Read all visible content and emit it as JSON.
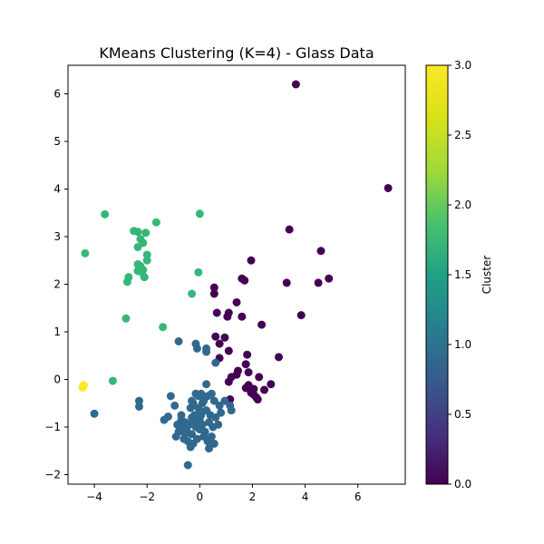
{
  "chart_data": {
    "type": "scatter",
    "title": "KMeans Clustering (K=4) - Glass Data",
    "xlabel": "",
    "ylabel": "",
    "xlim": [
      -5.0,
      7.8
    ],
    "ylim": [
      -2.2,
      6.6
    ],
    "x_ticks": [
      -4,
      -2,
      0,
      2,
      4,
      6
    ],
    "y_ticks": [
      -2,
      -1,
      0,
      1,
      2,
      3,
      4,
      5,
      6
    ],
    "x_tick_labels": [
      "−4",
      "−2",
      "0",
      "2",
      "4",
      "6"
    ],
    "y_tick_labels": [
      "−2",
      "−1",
      "0",
      "1",
      "2",
      "3",
      "4",
      "5",
      "6"
    ],
    "grid": false,
    "colormap": "viridis",
    "colorbar": {
      "label": "Cluster",
      "range": [
        0.0,
        3.0
      ],
      "ticks": [
        0.0,
        0.5,
        1.0,
        1.5,
        2.0,
        2.5,
        3.0
      ],
      "tick_labels": [
        "0.0",
        "0.5",
        "1.0",
        "1.5",
        "2.0",
        "2.5",
        "3.0"
      ]
    },
    "cluster_colors": [
      "#440154",
      "#31688e",
      "#35b779",
      "#fde725"
    ],
    "series": [
      {
        "cluster": 0,
        "points": [
          [
            3.65,
            6.2
          ],
          [
            7.15,
            4.02
          ],
          [
            1.95,
            2.5
          ],
          [
            3.4,
            3.15
          ],
          [
            4.6,
            2.7
          ],
          [
            4.9,
            2.12
          ],
          [
            4.5,
            2.03
          ],
          [
            3.3,
            2.03
          ],
          [
            1.6,
            2.12
          ],
          [
            1.7,
            2.08
          ],
          [
            0.55,
            1.93
          ],
          [
            0.55,
            1.8
          ],
          [
            1.4,
            1.62
          ],
          [
            0.65,
            1.4
          ],
          [
            1.1,
            1.4
          ],
          [
            1.05,
            1.32
          ],
          [
            1.6,
            1.32
          ],
          [
            3.85,
            1.35
          ],
          [
            2.35,
            1.15
          ],
          [
            0.6,
            0.9
          ],
          [
            0.95,
            0.88
          ],
          [
            0.75,
            0.75
          ],
          [
            1.1,
            0.6
          ],
          [
            1.8,
            0.52
          ],
          [
            3.0,
            0.47
          ],
          [
            0.75,
            0.45
          ],
          [
            1.75,
            0.32
          ],
          [
            1.45,
            0.18
          ],
          [
            1.4,
            0.1
          ],
          [
            1.85,
            0.15
          ],
          [
            1.2,
            0.05
          ],
          [
            2.25,
            0.05
          ],
          [
            1.1,
            -0.05
          ],
          [
            1.75,
            -0.18
          ],
          [
            1.85,
            -0.12
          ],
          [
            1.95,
            -0.25
          ],
          [
            2.05,
            -0.2
          ],
          [
            2.15,
            -0.38
          ],
          [
            2.05,
            -0.32
          ],
          [
            1.95,
            -0.28
          ],
          [
            2.2,
            -0.42
          ],
          [
            2.7,
            -0.1
          ],
          [
            1.15,
            -0.42
          ],
          [
            2.45,
            -0.22
          ]
        ]
      },
      {
        "cluster": 1,
        "points": [
          [
            -4.0,
            -0.72
          ],
          [
            -2.3,
            -0.45
          ],
          [
            -2.3,
            -0.57
          ],
          [
            -0.8,
            0.8
          ],
          [
            -0.15,
            0.75
          ],
          [
            -0.1,
            0.65
          ],
          [
            0.25,
            0.65
          ],
          [
            0.25,
            0.58
          ],
          [
            0.6,
            0.35
          ],
          [
            0.25,
            -0.1
          ],
          [
            -1.1,
            -0.35
          ],
          [
            -0.95,
            -0.55
          ],
          [
            -1.2,
            -0.78
          ],
          [
            -1.35,
            -0.85
          ],
          [
            -0.7,
            -0.75
          ],
          [
            -0.55,
            -0.9
          ],
          [
            -0.35,
            -0.6
          ],
          [
            -0.05,
            -0.35
          ],
          [
            0.05,
            -0.3
          ],
          [
            0.15,
            -0.45
          ],
          [
            0.3,
            -0.35
          ],
          [
            0.45,
            -0.3
          ],
          [
            0.55,
            -0.45
          ],
          [
            0.75,
            -0.55
          ],
          [
            0.95,
            -0.45
          ],
          [
            1.15,
            -0.55
          ],
          [
            1.2,
            -0.65
          ],
          [
            0.8,
            -0.7
          ],
          [
            0.6,
            -0.8
          ],
          [
            0.7,
            -0.95
          ],
          [
            0.5,
            -1.0
          ],
          [
            0.35,
            -0.9
          ],
          [
            0.2,
            -1.1
          ],
          [
            0.1,
            -0.95
          ],
          [
            0.0,
            -0.85
          ],
          [
            -0.1,
            -0.8
          ],
          [
            -0.2,
            -0.75
          ],
          [
            -0.3,
            -0.8
          ],
          [
            -0.4,
            -0.95
          ],
          [
            -0.5,
            -1.05
          ],
          [
            -0.65,
            -1.0
          ],
          [
            -0.8,
            -1.1
          ],
          [
            -0.9,
            -1.2
          ],
          [
            -0.6,
            -1.25
          ],
          [
            -0.45,
            -1.3
          ],
          [
            -0.3,
            -1.15
          ],
          [
            -0.15,
            -1.0
          ],
          [
            0.0,
            -1.05
          ],
          [
            0.15,
            -1.2
          ],
          [
            0.3,
            -1.3
          ],
          [
            0.45,
            -1.2
          ],
          [
            0.55,
            -1.35
          ],
          [
            0.35,
            -1.45
          ],
          [
            -0.35,
            -1.42
          ],
          [
            -0.25,
            -1.35
          ],
          [
            -0.55,
            -1.15
          ],
          [
            -0.7,
            -0.85
          ],
          [
            -0.85,
            -0.95
          ],
          [
            -0.25,
            -0.5
          ],
          [
            -0.05,
            -0.6
          ],
          [
            0.25,
            -0.65
          ],
          [
            0.4,
            -0.75
          ],
          [
            0.0,
            -0.65
          ],
          [
            -0.45,
            -1.8
          ],
          [
            -0.1,
            -1.25
          ],
          [
            -0.2,
            -0.9
          ],
          [
            0.05,
            -0.75
          ],
          [
            -0.3,
            -0.45
          ],
          [
            -0.15,
            -0.3
          ],
          [
            0.1,
            -0.5
          ]
        ]
      },
      {
        "cluster": 2,
        "points": [
          [
            -4.35,
            2.65
          ],
          [
            -3.6,
            3.47
          ],
          [
            -2.5,
            3.12
          ],
          [
            -2.35,
            3.1
          ],
          [
            -2.05,
            3.08
          ],
          [
            -2.25,
            2.95
          ],
          [
            -2.15,
            2.87
          ],
          [
            -2.35,
            2.78
          ],
          [
            -1.65,
            3.3
          ],
          [
            0.0,
            3.48
          ],
          [
            -2.0,
            2.62
          ],
          [
            -2.0,
            2.5
          ],
          [
            -2.35,
            2.42
          ],
          [
            -2.25,
            2.38
          ],
          [
            -2.15,
            2.3
          ],
          [
            -2.35,
            2.28
          ],
          [
            -2.2,
            2.25
          ],
          [
            -2.1,
            2.15
          ],
          [
            -2.7,
            2.15
          ],
          [
            -2.75,
            2.05
          ],
          [
            -0.05,
            2.25
          ],
          [
            -0.3,
            1.8
          ],
          [
            -2.8,
            1.28
          ],
          [
            -1.4,
            1.1
          ],
          [
            -3.3,
            -0.03
          ]
        ]
      },
      {
        "cluster": 3,
        "points": [
          [
            -4.4,
            -0.12
          ],
          [
            -4.45,
            -0.17
          ],
          [
            -4.42,
            -0.15
          ]
        ]
      }
    ]
  }
}
